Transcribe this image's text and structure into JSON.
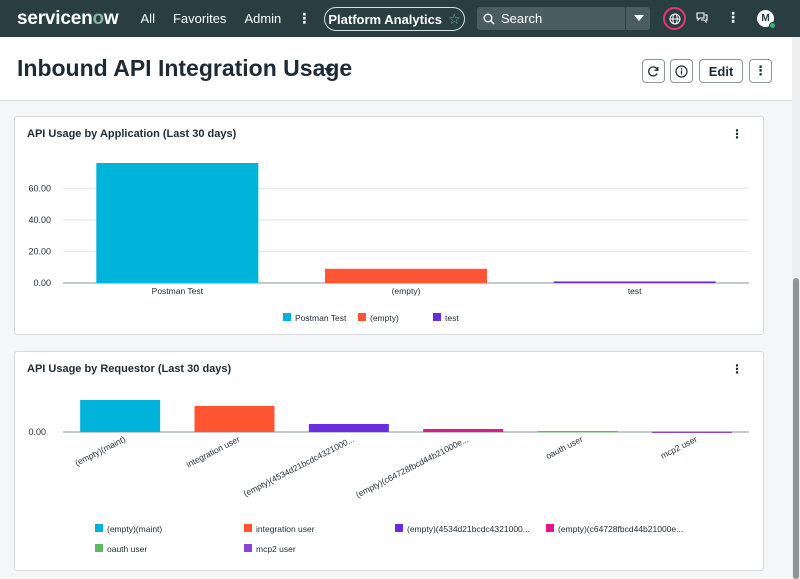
{
  "nav": {
    "logo_main": "servicen",
    "logo_o": "o",
    "logo_end": "w",
    "items": [
      "All",
      "Favorites",
      "Admin"
    ],
    "more": "⋮",
    "pill_label": "Platform Analytics",
    "search_placeholder": "Search",
    "avatar_initial": "M"
  },
  "header": {
    "title": "Inbound API Integration Usage",
    "edit_label": "Edit"
  },
  "colors": {
    "nav_bg": "#293e40",
    "cyan": "#00b3d9",
    "orange": "#ff5533",
    "purple": "#6b2be0",
    "magenta": "#e0188c",
    "green": "#5cba5e",
    "violet": "#8b44d4"
  },
  "cards": [
    {
      "title": "API Usage by Application (Last 30 days)",
      "chart_data": {
        "type": "bar",
        "categories": [
          "Postman Test",
          "(empty)",
          "test"
        ],
        "values": [
          76,
          9,
          1
        ],
        "yticks": [
          "0.00",
          "20.00",
          "40.00",
          "60.00"
        ],
        "ylim": [
          0,
          76
        ],
        "legend": [
          "Postman Test",
          "(empty)",
          "test"
        ],
        "colors": [
          "#00b3d9",
          "#ff5533",
          "#6b2be0"
        ]
      }
    },
    {
      "title": "API Usage by Requestor (Last 30 days)",
      "chart_data": {
        "type": "bar",
        "categories": [
          "(empty)(maint)",
          "integration user",
          "(empty)(4534d21bcdc4321000...",
          "(empty)(c64728fbcd44b21000e...",
          "oauth user",
          "mcp2 user"
        ],
        "values": [
          32,
          26,
          8,
          3,
          1,
          0.5
        ],
        "yticks": [
          "0.00"
        ],
        "ylim": [
          0,
          32
        ],
        "legend": [
          "(empty)(maint)",
          "integration user",
          "(empty)(4534d21bcdc4321000...",
          "(empty)(c64728fbcd44b21000e...",
          "oauth user",
          "mcp2 user"
        ],
        "colors": [
          "#00b3d9",
          "#ff5533",
          "#6b2be0",
          "#e0188c",
          "#5cba5e",
          "#8b44d4"
        ]
      }
    }
  ]
}
